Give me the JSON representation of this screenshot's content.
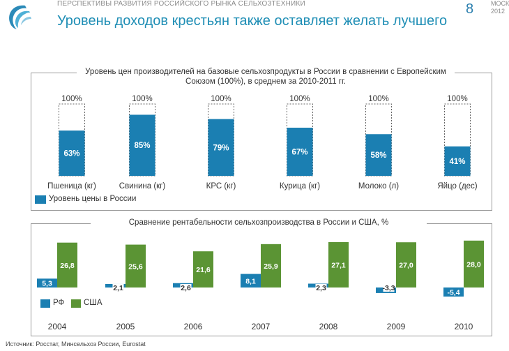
{
  "header": {
    "tag": "ПЕРСПЕКТИВЫ РАЗВИТИЯ РОССИЙСКОГО РЫНКА СЕЛЬХОЗТЕХНИКИ",
    "title": "Уровень доходов крестьян также оставляет желать лучшего",
    "page_number": "8",
    "city": "МОСКВА",
    "year": "2012"
  },
  "source": "Источник: Росстат, Минсельхоз России, Eurostat",
  "colors": {
    "blue": "#1b7fb2",
    "green": "#5b9434",
    "title": "#1f8eb5",
    "logo": "#2b8ab8"
  },
  "chart_data": [
    {
      "type": "bar",
      "title": "Уровень цен производителей на базовые сельхозпродукты в России в сравнении с Европейским Союзом (100%), в среднем за 2010-2011 гг.",
      "categories": [
        "Пшеница (кг)",
        "Свинина (кг)",
        "КРС (кг)",
        "Курица (кг)",
        "Молоко (л)",
        "Яйцо (дес)"
      ],
      "series": [
        {
          "name": "Уровень цены в России",
          "values": [
            63,
            85,
            79,
            67,
            58,
            41
          ],
          "labels": [
            "63%",
            "85%",
            "79%",
            "67%",
            "58%",
            "41%"
          ]
        }
      ],
      "reference_label": "100%",
      "reference_value": 100,
      "ylim": [
        0,
        100
      ],
      "legend": "bottom-left"
    },
    {
      "type": "bar",
      "title": "Сравнение рентабельности сельхозпроизводства в России и США, %",
      "categories": [
        "2004",
        "2005",
        "2006",
        "2007",
        "2008",
        "2009",
        "2010"
      ],
      "series": [
        {
          "name": "РФ",
          "values": [
            5.3,
            2.1,
            2.6,
            8.1,
            2.3,
            -3.3,
            -5.4
          ],
          "labels": [
            "5,3",
            "2,1",
            "2,6",
            "8,1",
            "2,3",
            "-3,3",
            "-5,4"
          ]
        },
        {
          "name": "США",
          "values": [
            26.8,
            25.6,
            21.6,
            25.9,
            27.1,
            27.0,
            28.0
          ],
          "labels": [
            "26,8",
            "25,6",
            "21,6",
            "25,9",
            "27,1",
            "27,0",
            "28,0"
          ]
        }
      ],
      "ylim": [
        -6,
        29
      ],
      "legend": "bottom-left"
    }
  ]
}
